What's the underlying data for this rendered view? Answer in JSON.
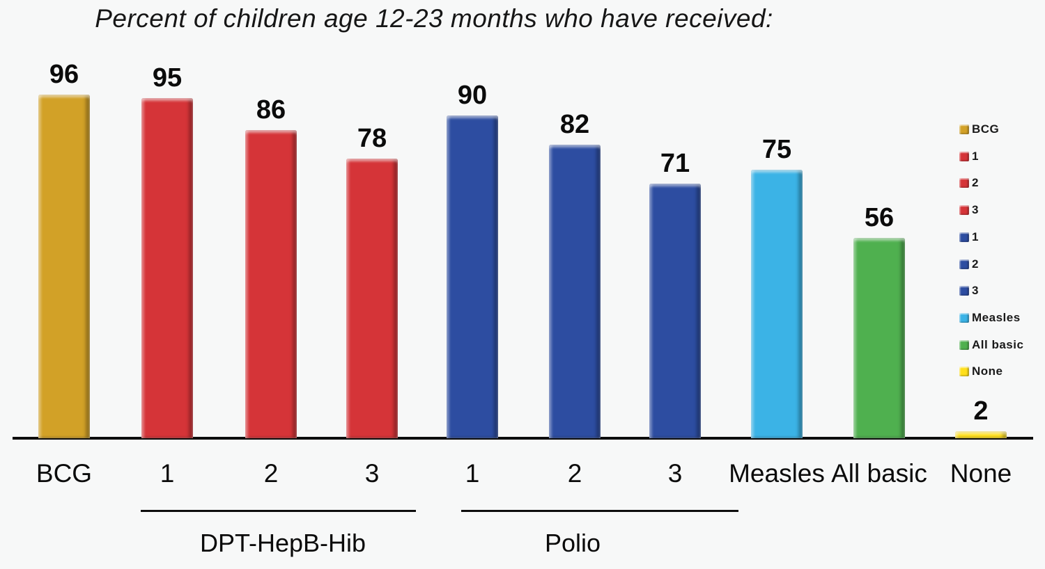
{
  "background_color": "#f7f8f8",
  "chart_data": {
    "type": "bar",
    "title": "Percent of children age 12-23 months who have received:",
    "categories": [
      "BCG",
      "1",
      "2",
      "3",
      "1",
      "2",
      "3",
      "Measles",
      "All basic",
      "None"
    ],
    "values": [
      96,
      95,
      86,
      78,
      90,
      82,
      71,
      75,
      56,
      2
    ],
    "bar_colors": [
      "#d2a127",
      "#d53438",
      "#d53438",
      "#d53438",
      "#2d4da1",
      "#2d4da1",
      "#2d4da1",
      "#3bb3e6",
      "#4fb04f",
      "#ffdf1b"
    ],
    "data_labels": true,
    "grid": false,
    "ylim": [
      0,
      100
    ],
    "xlabel": "",
    "ylabel": "",
    "groups": [
      {
        "label": "DPT-HepB-Hib",
        "start_index": 1,
        "end_index": 3
      },
      {
        "label": "Polio",
        "start_index": 4,
        "end_index": 6
      }
    ],
    "legend": {
      "position": "right",
      "entries": [
        {
          "label": "BCG",
          "color": "#d2a127"
        },
        {
          "label": "1",
          "color": "#d53438"
        },
        {
          "label": "2",
          "color": "#d53438"
        },
        {
          "label": "3",
          "color": "#d53438"
        },
        {
          "label": "1",
          "color": "#2d4da1"
        },
        {
          "label": "2",
          "color": "#2d4da1"
        },
        {
          "label": "3",
          "color": "#2d4da1"
        },
        {
          "label": "Measles",
          "color": "#3bb3e6"
        },
        {
          "label": "All basic",
          "color": "#4fb04f"
        },
        {
          "label": "None",
          "color": "#ffdf1b"
        }
      ]
    }
  }
}
